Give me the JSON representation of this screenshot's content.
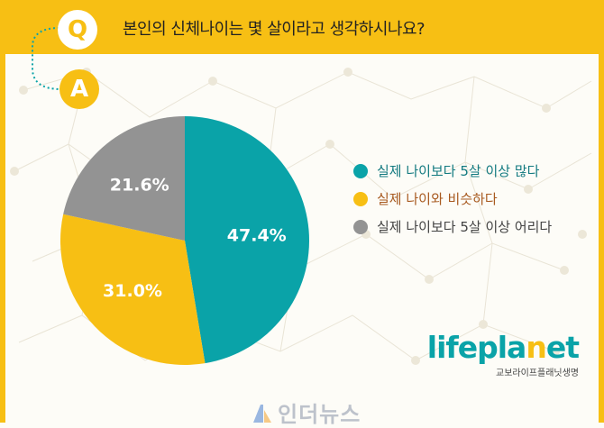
{
  "header": {
    "q_badge": "Q",
    "a_badge": "A",
    "question": "본인의 신체나이는 몇 살이라고 생각하시나요?"
  },
  "chart_data": {
    "type": "pie",
    "slices": [
      {
        "label": "실제 나이보다 5살 이상 많다",
        "value": 47.4,
        "value_label": "47.4%",
        "color": "#0aa3a8"
      },
      {
        "label": "실제 나이와 비슷하다",
        "value": 31.0,
        "value_label": "31.0%",
        "color": "#f7bf14"
      },
      {
        "label": "실제 나이보다 5살 이상 어리다",
        "value": 21.6,
        "value_label": "21.6%",
        "color": "#939393"
      }
    ],
    "legend_position": "right"
  },
  "colors": {
    "frame": "#f7bf14",
    "teal": "#0aa3a8",
    "yellow": "#f7bf14",
    "gray": "#939393",
    "label_teal": "#137a80",
    "label_brown": "#a85a20",
    "label_gray": "#444444"
  },
  "brand": {
    "name_part1": "lifepla",
    "name_o": "n",
    "name_part2": "et",
    "subtitle": "교보라이프플래닛생명"
  },
  "watermark": {
    "text": "인더뉴스",
    "icon": "inthenews-logo-icon"
  }
}
